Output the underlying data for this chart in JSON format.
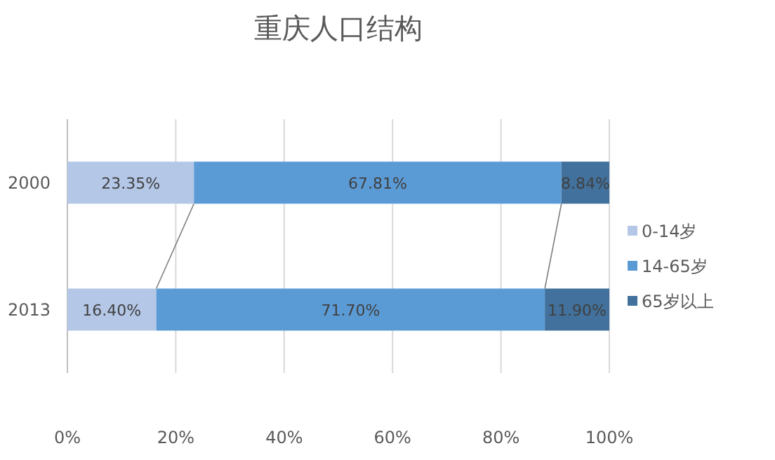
{
  "chart_data": {
    "type": "bar",
    "orientation": "horizontal",
    "stacked": true,
    "title": "重庆人口结构",
    "categories": [
      "2000",
      "2013"
    ],
    "series": [
      {
        "name": "0-14岁",
        "color": "#b4c7e7",
        "values": [
          23.35,
          16.4
        ],
        "value_labels": [
          "23.35%",
          "16.40%"
        ]
      },
      {
        "name": "14-65岁",
        "color": "#5b9bd5",
        "values": [
          67.81,
          71.7
        ],
        "value_labels": [
          "67.81%",
          "71.70%"
        ]
      },
      {
        "name": "65岁以上",
        "color": "#41719c",
        "values": [
          8.84,
          11.9
        ],
        "value_labels": [
          "8.84%",
          "11.90%"
        ]
      }
    ],
    "xlim": [
      0,
      100
    ],
    "xticks": [
      {
        "value": 0,
        "label": "0%"
      },
      {
        "value": 20,
        "label": "20%"
      },
      {
        "value": 40,
        "label": "40%"
      },
      {
        "value": 60,
        "label": "60%"
      },
      {
        "value": 80,
        "label": "80%"
      },
      {
        "value": 100,
        "label": "100%"
      }
    ],
    "grid": "x",
    "legend": "right"
  }
}
